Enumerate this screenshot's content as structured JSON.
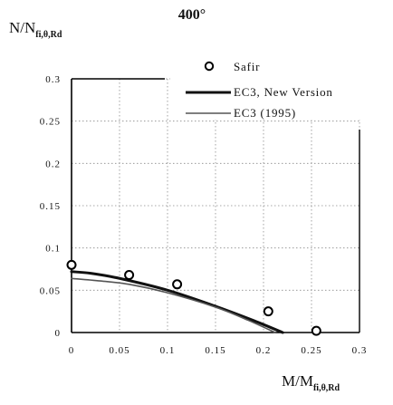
{
  "chart_data": {
    "type": "line",
    "title": "400°",
    "ylabel": {
      "main": "N/N",
      "sub": "fi,θ,Rd"
    },
    "xlabel": {
      "main": "M/M",
      "sub": "fi,θ,Rd"
    },
    "xlim": [
      0,
      0.3
    ],
    "ylim": [
      0,
      0.3
    ],
    "xticks": [
      0,
      0.05,
      0.1,
      0.15,
      0.2,
      0.25,
      0.3
    ],
    "yticks": [
      0,
      0.05,
      0.1,
      0.15,
      0.2,
      0.25,
      0.3
    ],
    "xtick_labels": [
      "0",
      "0.05",
      "0.1",
      "0.15",
      "0.2",
      "0.25",
      "0.3"
    ],
    "ytick_labels": [
      "0",
      "0.05",
      "0.1",
      "0.15",
      "0.2",
      "0.25",
      "0.3"
    ],
    "grid": true,
    "legend_position": "top-right",
    "series": [
      {
        "name": "Safir",
        "style": "markers",
        "color": "#000000",
        "points": [
          [
            0.0,
            0.08
          ],
          [
            0.06,
            0.068
          ],
          [
            0.11,
            0.057
          ],
          [
            0.205,
            0.025
          ],
          [
            0.255,
            0.002
          ]
        ]
      },
      {
        "name": "EC3, New Version",
        "style": "thick-line",
        "color": "#111111",
        "points": [
          [
            0.0,
            0.072
          ],
          [
            0.02,
            0.07
          ],
          [
            0.05,
            0.064
          ],
          [
            0.1,
            0.05
          ],
          [
            0.15,
            0.031
          ],
          [
            0.19,
            0.014
          ],
          [
            0.22,
            0.0
          ]
        ]
      },
      {
        "name": "EC3 (1995)",
        "style": "thin-line",
        "color": "#555555",
        "points": [
          [
            0.0,
            0.064
          ],
          [
            0.03,
            0.061
          ],
          [
            0.06,
            0.057
          ],
          [
            0.1,
            0.047
          ],
          [
            0.15,
            0.03
          ],
          [
            0.185,
            0.014
          ],
          [
            0.212,
            0.0
          ]
        ]
      }
    ]
  }
}
